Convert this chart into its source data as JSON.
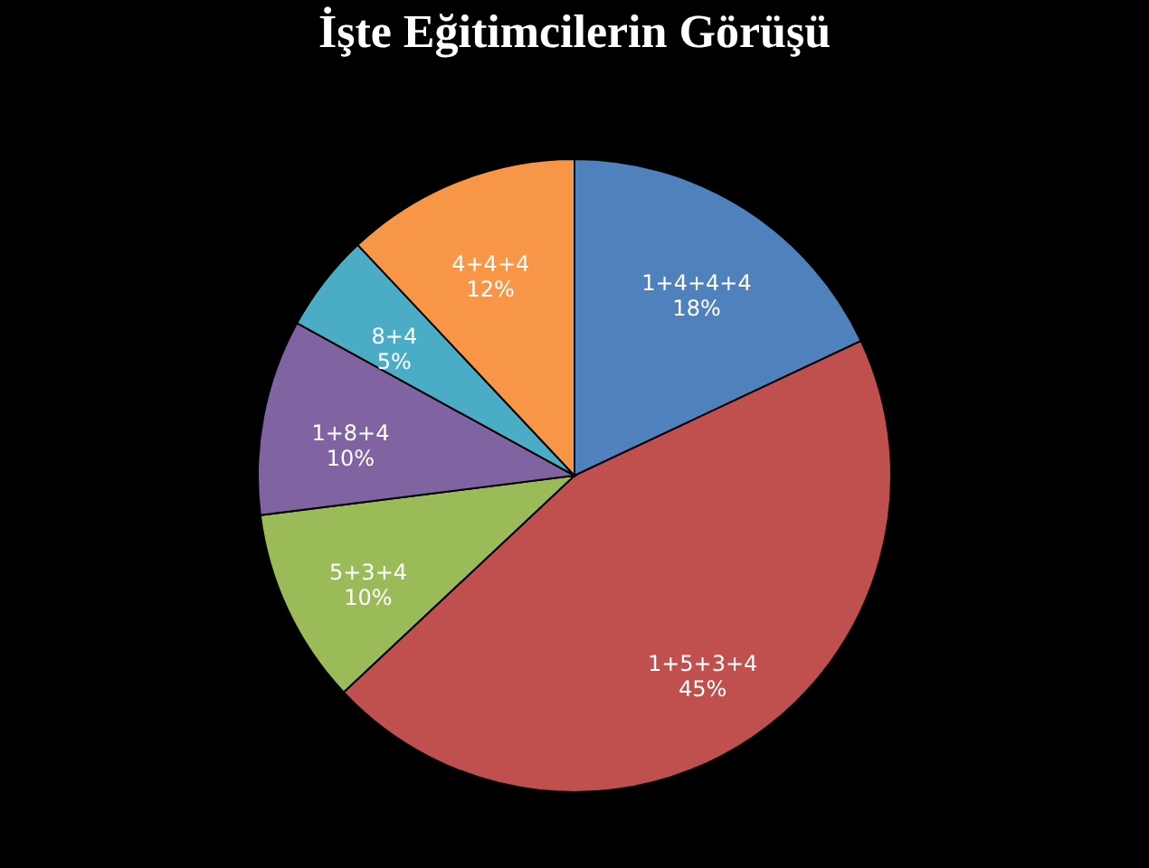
{
  "chart_data": {
    "type": "pie",
    "title": "İşte Eğitimcilerin Görüşü",
    "categories": [
      "1+4+4+4",
      "1+5+3+4",
      "5+3+4",
      "1+8+4",
      "8+4",
      "4+4+4"
    ],
    "values": [
      18,
      45,
      10,
      10,
      5,
      12
    ],
    "value_labels": [
      "18%",
      "45%",
      "10%",
      "10%",
      "5%",
      "12%"
    ],
    "colors": [
      "#4f81bd",
      "#c0504d",
      "#9bbb59",
      "#8064a2",
      "#4bacc6",
      "#f79646"
    ],
    "legend": false
  }
}
